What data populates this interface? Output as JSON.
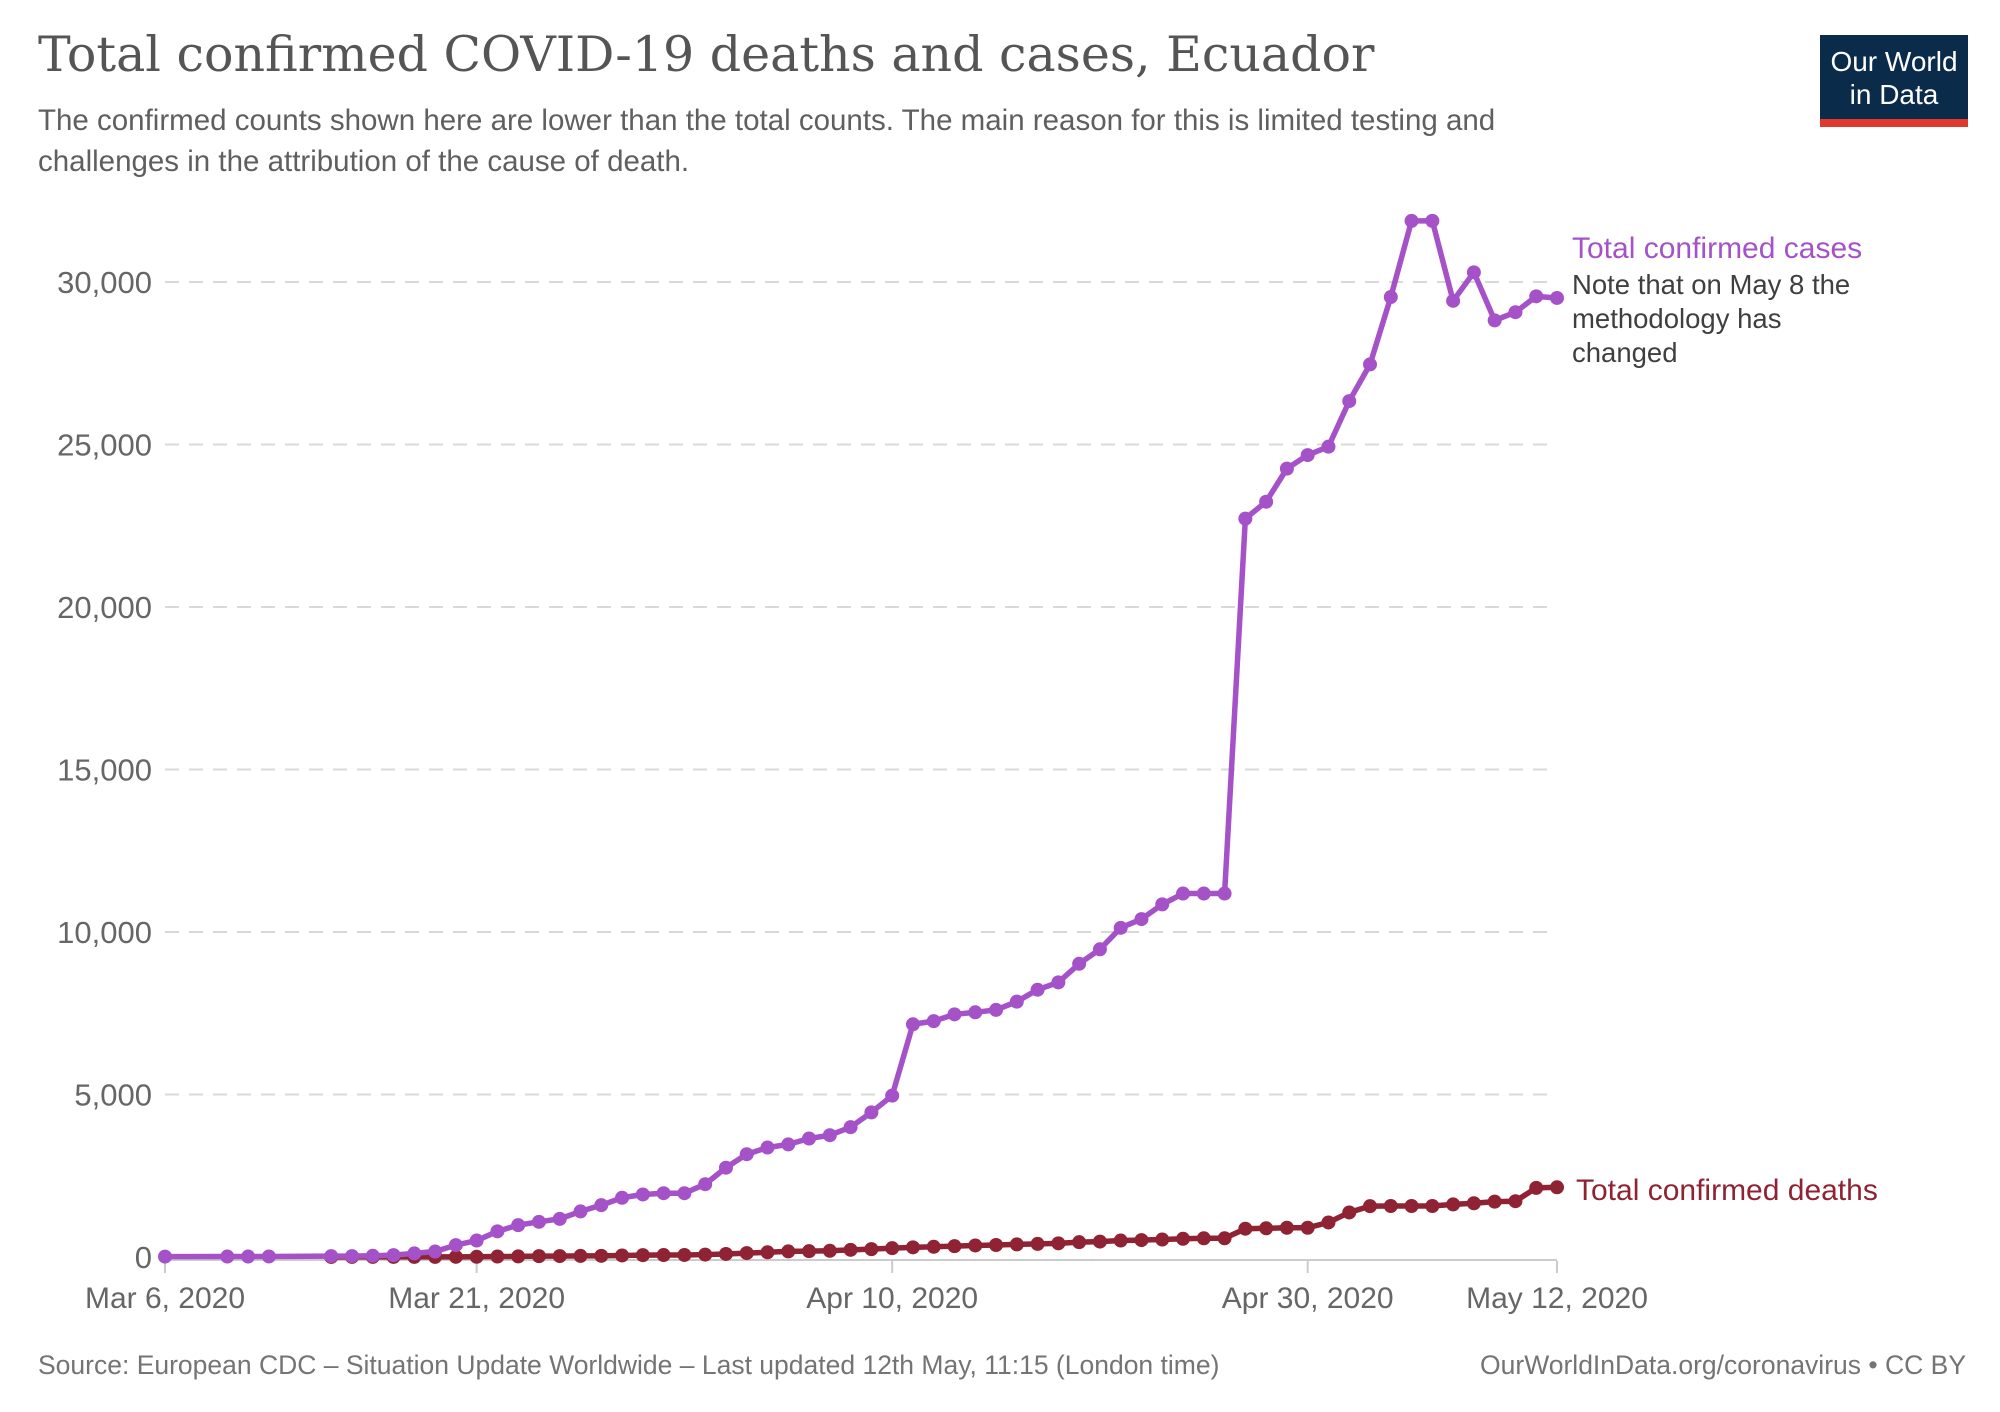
{
  "header": {
    "title": "Total confirmed COVID-19 deaths and cases, Ecuador",
    "subtitle_line1": "The confirmed counts shown here are lower than the total counts. The main reason for this is limited testing and",
    "subtitle_line2": "challenges in the attribution of the cause of death.",
    "logo": {
      "line1": "Our World",
      "line2": "in Data",
      "bg_color": "#0b2b4b",
      "stripe_color": "#e0392f"
    }
  },
  "chart_data": {
    "type": "line",
    "title": "Total confirmed COVID-19 deaths and cases, Ecuador",
    "xlabel": "",
    "ylabel": "",
    "ylim": [
      0,
      32000
    ],
    "grid": "horizontal-dashed",
    "legend_position": "end-of-line-labels",
    "x": [
      "Mar 6",
      "Mar 9",
      "Mar 10",
      "Mar 11",
      "Mar 14",
      "Mar 15",
      "Mar 16",
      "Mar 17",
      "Mar 18",
      "Mar 19",
      "Mar 20",
      "Mar 21",
      "Mar 22",
      "Mar 23",
      "Mar 24",
      "Mar 25",
      "Mar 26",
      "Mar 27",
      "Mar 28",
      "Mar 29",
      "Mar 30",
      "Mar 31",
      "Apr 1",
      "Apr 2",
      "Apr 3",
      "Apr 4",
      "Apr 5",
      "Apr 6",
      "Apr 7",
      "Apr 8",
      "Apr 9",
      "Apr 10",
      "Apr 11",
      "Apr 12",
      "Apr 13",
      "Apr 14",
      "Apr 15",
      "Apr 16",
      "Apr 17",
      "Apr 18",
      "Apr 19",
      "Apr 20",
      "Apr 21",
      "Apr 22",
      "Apr 23",
      "Apr 24",
      "Apr 25",
      "Apr 26",
      "Apr 27",
      "Apr 28",
      "Apr 29",
      "Apr 30",
      "May 1",
      "May 2",
      "May 3",
      "May 4",
      "May 5",
      "May 6",
      "May 7",
      "May 8",
      "May 9",
      "May 10",
      "May 11",
      "May 12"
    ],
    "series": [
      {
        "name": "Total confirmed cases",
        "color": "#a552c8",
        "values": [
          13,
          15,
          15,
          17,
          28,
          28,
          37,
          58,
          111,
          168,
          367,
          506,
          789,
          981,
          1082,
          1173,
          1403,
          1595,
          1823,
          1924,
          1962,
          1962,
          2240,
          2748,
          3163,
          3368,
          3465,
          3646,
          3747,
          3995,
          4450,
          4965,
          7161,
          7257,
          7466,
          7529,
          7603,
          7858,
          8225,
          8450,
          9022,
          9468,
          10128,
          10398,
          10850,
          11183,
          11183,
          11183,
          22719,
          23240,
          24258,
          24675,
          24934,
          26336,
          27464,
          29538,
          31881,
          31881,
          29420,
          30298,
          28818,
          29071,
          29559,
          29509
        ]
      },
      {
        "name": "Total confirmed deaths",
        "color": "#8f2333",
        "values": [
          null,
          null,
          null,
          null,
          1,
          2,
          2,
          2,
          2,
          3,
          5,
          7,
          14,
          18,
          27,
          28,
          34,
          36,
          48,
          58,
          60,
          62,
          75,
          93,
          120,
          145,
          172,
          180,
          191,
          220,
          242,
          272,
          297,
          315,
          333,
          355,
          369,
          388,
          403,
          421,
          456,
          474,
          507,
          520,
          537,
          560,
          576,
          576,
          871,
          883,
          900,
          900,
          1063,
          1371,
          1564,
          1569,
          1569,
          1569,
          1618,
          1654,
          1704,
          1717,
          2127,
          2145
        ]
      }
    ],
    "x_ticks": [
      {
        "date": "Mar 6",
        "label": "Mar 6, 2020"
      },
      {
        "date": "Mar 21",
        "label": "Mar 21, 2020"
      },
      {
        "date": "Apr 10",
        "label": "Apr 10, 2020"
      },
      {
        "date": "Apr 30",
        "label": "Apr 30, 2020"
      },
      {
        "date": "May 12",
        "label": "May 12, 2020"
      }
    ],
    "y_ticks": [
      0,
      5000,
      10000,
      15000,
      20000,
      25000,
      30000
    ],
    "annotations": {
      "cases_label": "Total confirmed cases",
      "cases_note": "Note that on May 8 the methodology has changed",
      "deaths_label": "Total confirmed deaths"
    }
  },
  "footer": {
    "source": "Source: European CDC – Situation Update Worldwide – Last updated 12th May, 11:15 (London time)",
    "credit": "OurWorldInData.org/coronavirus • CC BY"
  }
}
